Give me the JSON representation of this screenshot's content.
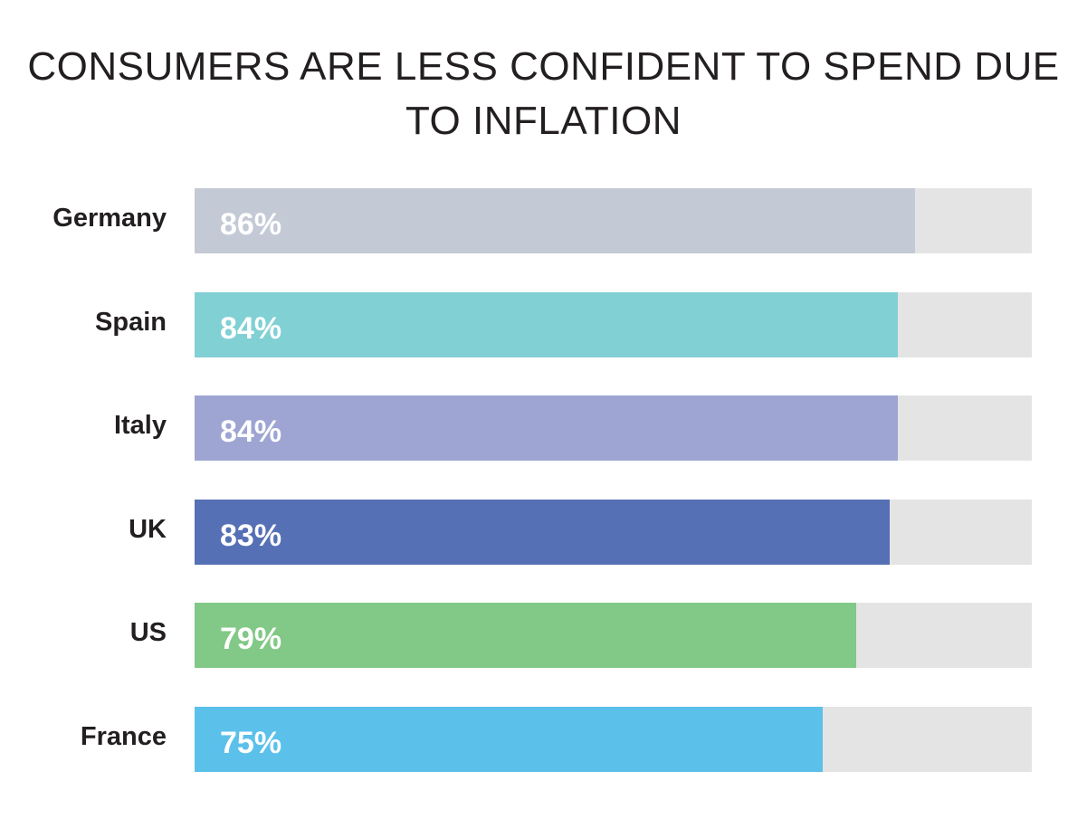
{
  "chart_data": {
    "type": "bar",
    "orientation": "horizontal",
    "title": "CONSUMERS ARE LESS CONFIDENT TO SPEND DUE TO INFLATION",
    "title_lines": [
      "CONSUMERS ARE LESS CONFIDENT TO SPEND DUE",
      "TO INFLATION"
    ],
    "xlabel": "",
    "ylabel": "",
    "xlim": [
      0,
      100
    ],
    "grid": false,
    "legend": "none",
    "track_color": "#e4e4e4",
    "categories": [
      "Germany",
      "Spain",
      "Italy",
      "UK",
      "US",
      "France"
    ],
    "values": [
      86,
      84,
      84,
      83,
      79,
      75
    ],
    "value_labels": [
      "86%",
      "84%",
      "84%",
      "83%",
      "79%",
      "75%"
    ],
    "colors": [
      "#c3c9d5",
      "#80d0d4",
      "#9ea5d2",
      "#5670b6",
      "#82c886",
      "#5bc1ea"
    ]
  }
}
